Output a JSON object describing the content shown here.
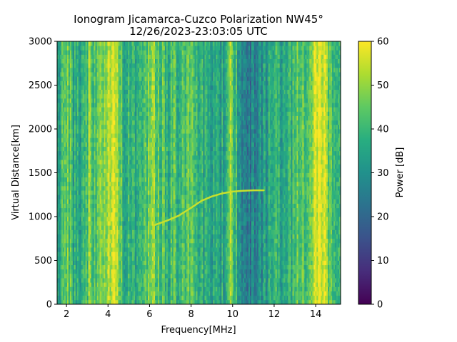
{
  "chart_data": {
    "type": "heatmap",
    "title": "Ionogram Jicamarca-Cuzco Polarization NW45°",
    "subtitle": "12/26/2023-23:03:05 UTC",
    "xlabel": "Frequency[MHz]",
    "ylabel": "Virtual Distance[km]",
    "xlim": [
      1.55,
      15.2
    ],
    "ylim": [
      0,
      3000
    ],
    "xticks": [
      2,
      4,
      6,
      8,
      10,
      12,
      14
    ],
    "yticks": [
      0,
      500,
      1000,
      1500,
      2000,
      2500,
      3000
    ],
    "colormap": "viridis",
    "colorbar": {
      "label": "Power [dB]",
      "range": [
        0,
        60
      ],
      "ticks": [
        0,
        10,
        20,
        30,
        40,
        50,
        60
      ]
    },
    "column_mean_power_db": [
      {
        "f": 1.6,
        "db": 34
      },
      {
        "f": 1.85,
        "db": 42
      },
      {
        "f": 2.05,
        "db": 50
      },
      {
        "f": 2.3,
        "db": 36
      },
      {
        "f": 2.6,
        "db": 38
      },
      {
        "f": 2.9,
        "db": 37
      },
      {
        "f": 3.1,
        "db": 48
      },
      {
        "f": 3.3,
        "db": 40
      },
      {
        "f": 3.6,
        "db": 46
      },
      {
        "f": 3.9,
        "db": 52
      },
      {
        "f": 4.1,
        "db": 56
      },
      {
        "f": 4.3,
        "db": 52
      },
      {
        "f": 4.6,
        "db": 42
      },
      {
        "f": 5.0,
        "db": 38
      },
      {
        "f": 5.4,
        "db": 37
      },
      {
        "f": 5.8,
        "db": 42
      },
      {
        "f": 6.1,
        "db": 54
      },
      {
        "f": 6.4,
        "db": 44
      },
      {
        "f": 6.8,
        "db": 38
      },
      {
        "f": 7.2,
        "db": 42
      },
      {
        "f": 7.6,
        "db": 41
      },
      {
        "f": 8.0,
        "db": 43
      },
      {
        "f": 8.4,
        "db": 38
      },
      {
        "f": 8.8,
        "db": 34
      },
      {
        "f": 9.2,
        "db": 36
      },
      {
        "f": 9.6,
        "db": 33
      },
      {
        "f": 9.9,
        "db": 52
      },
      {
        "f": 10.3,
        "db": 31
      },
      {
        "f": 10.7,
        "db": 26
      },
      {
        "f": 11.1,
        "db": 25
      },
      {
        "f": 11.5,
        "db": 30
      },
      {
        "f": 11.9,
        "db": 40
      },
      {
        "f": 12.3,
        "db": 36
      },
      {
        "f": 12.7,
        "db": 38
      },
      {
        "f": 13.1,
        "db": 42
      },
      {
        "f": 13.5,
        "db": 44
      },
      {
        "f": 13.9,
        "db": 52
      },
      {
        "f": 14.2,
        "db": 58
      },
      {
        "f": 14.5,
        "db": 50
      },
      {
        "f": 14.8,
        "db": 44
      },
      {
        "f": 15.1,
        "db": 40
      }
    ],
    "echo_trace": [
      {
        "f": 6.2,
        "km": 900
      },
      {
        "f": 6.8,
        "km": 950
      },
      {
        "f": 7.4,
        "km": 1010
      },
      {
        "f": 8.0,
        "km": 1100
      },
      {
        "f": 8.5,
        "km": 1180
      },
      {
        "f": 9.0,
        "km": 1230
      },
      {
        "f": 9.5,
        "km": 1265
      },
      {
        "f": 10.0,
        "km": 1285
      },
      {
        "f": 10.5,
        "km": 1295
      },
      {
        "f": 11.0,
        "km": 1300
      },
      {
        "f": 11.5,
        "km": 1300
      }
    ],
    "echo_trace_power_db": 55
  }
}
